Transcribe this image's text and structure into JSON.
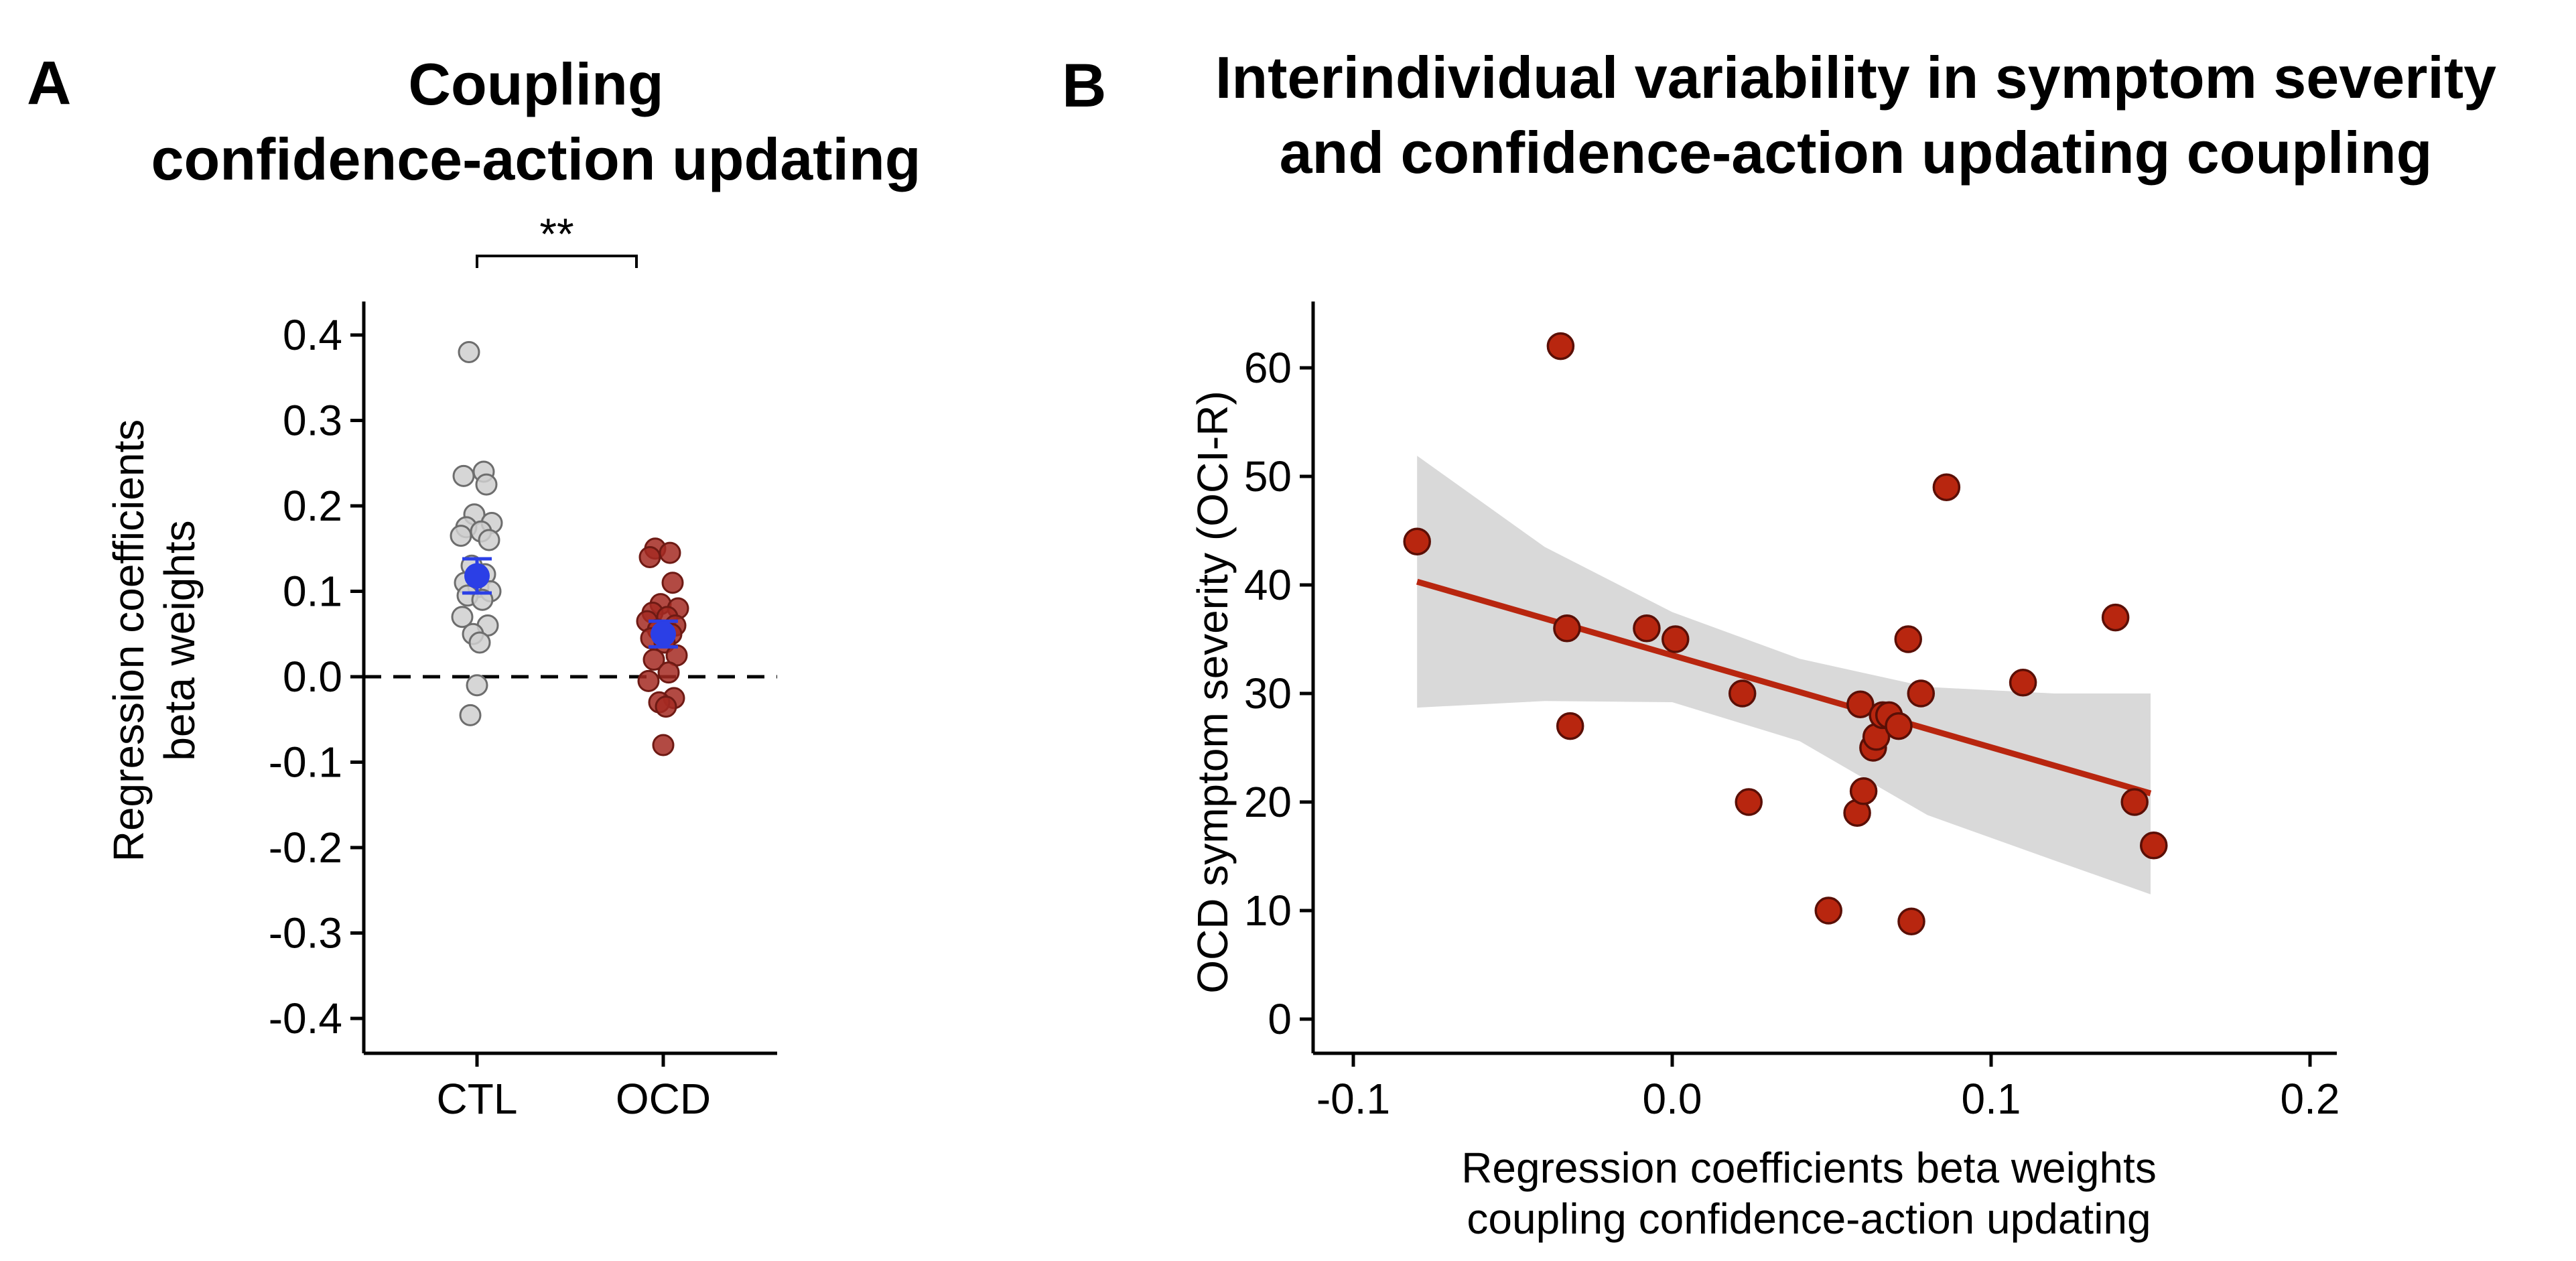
{
  "panelA": {
    "letter": "A",
    "title_line1": "Coupling",
    "title_line2": "confidence-action updating",
    "ylabel_line1": "Regression coefficients",
    "ylabel_line2": "beta weights",
    "significance": "**"
  },
  "panelB": {
    "letter": "B",
    "title_line1": "Interindividual variability in symptom severity",
    "title_line2": "and confidence-action updating coupling",
    "ylabel": "OCD symptom severity (OCI-R)",
    "xlabel_line1": "Regression coefficients beta weights",
    "xlabel_line2": "coupling confidence-action updating"
  },
  "chart_data": [
    {
      "type": "scatter",
      "categories": [
        "CTL",
        "OCD"
      ],
      "ylim": [
        -0.44,
        0.44
      ],
      "yticks": [
        0.4,
        0.3,
        0.2,
        0.1,
        0.0,
        -0.1,
        -0.2,
        -0.3,
        -0.4
      ],
      "ytick_labels": [
        "0.4",
        "0.3",
        "0.2",
        "0.1",
        "0.0",
        "-0.1",
        "-0.2",
        "-0.3",
        "-0.4"
      ],
      "reference_line": 0.0,
      "series": [
        {
          "category": "CTL",
          "color": "#cfcfcf",
          "values": [
            0.38,
            0.24,
            0.235,
            0.225,
            0.19,
            0.18,
            0.175,
            0.17,
            0.165,
            0.16,
            0.13,
            0.12,
            0.11,
            0.105,
            0.1,
            0.095,
            0.09,
            0.07,
            0.06,
            0.05,
            0.04,
            -0.01,
            -0.045
          ],
          "mean": 0.118,
          "sem": 0.02
        },
        {
          "category": "OCD",
          "color": "#a52a22",
          "values": [
            0.15,
            0.145,
            0.14,
            0.11,
            0.085,
            0.08,
            0.075,
            0.07,
            0.065,
            0.06,
            0.055,
            0.05,
            0.045,
            0.04,
            0.025,
            0.02,
            0.005,
            -0.005,
            -0.025,
            -0.03,
            -0.035,
            -0.08
          ],
          "mean": 0.05,
          "sem": 0.015
        }
      ],
      "mean_color": "#2b3fe6"
    },
    {
      "type": "scatter",
      "xlim": [
        -0.11,
        0.21
      ],
      "ylim": [
        -2,
        66
      ],
      "xticks": [
        -0.1,
        0.0,
        0.1,
        0.2
      ],
      "xtick_labels": [
        "-0.1",
        "0.0",
        "0.1",
        "0.2"
      ],
      "yticks": [
        0,
        10,
        20,
        30,
        40,
        50,
        60
      ],
      "ytick_labels": [
        "0",
        "10",
        "20",
        "30",
        "40",
        "50",
        "60"
      ],
      "point_color": "#b8260f",
      "x": [
        -0.08,
        -0.035,
        -0.033,
        -0.032,
        -0.008,
        0.001,
        0.022,
        0.024,
        0.049,
        0.058,
        0.059,
        0.06,
        0.063,
        0.064,
        0.066,
        0.068,
        0.071,
        0.074,
        0.075,
        0.078,
        0.086,
        0.11,
        0.139,
        0.145,
        0.151
      ],
      "y": [
        44,
        62,
        36,
        27,
        36,
        35,
        30,
        20,
        10,
        19,
        29,
        21,
        25,
        26,
        28,
        28,
        27,
        35,
        9,
        30,
        49,
        31,
        37,
        20,
        16
      ],
      "regression": {
        "x": [
          -0.08,
          0.15
        ],
        "y": [
          40.3,
          20.8
        ],
        "color": "#b8260f"
      },
      "confidence_band": {
        "color": "#d9d9d9",
        "x": [
          -0.08,
          -0.04,
          0.0,
          0.04,
          0.08,
          0.12,
          0.15
        ],
        "upper": [
          51.9,
          43.5,
          37.5,
          33.2,
          30.6,
          30.0,
          30.0
        ],
        "lower": [
          28.7,
          29.3,
          29.2,
          25.6,
          18.8,
          14.6,
          11.5
        ]
      }
    }
  ]
}
